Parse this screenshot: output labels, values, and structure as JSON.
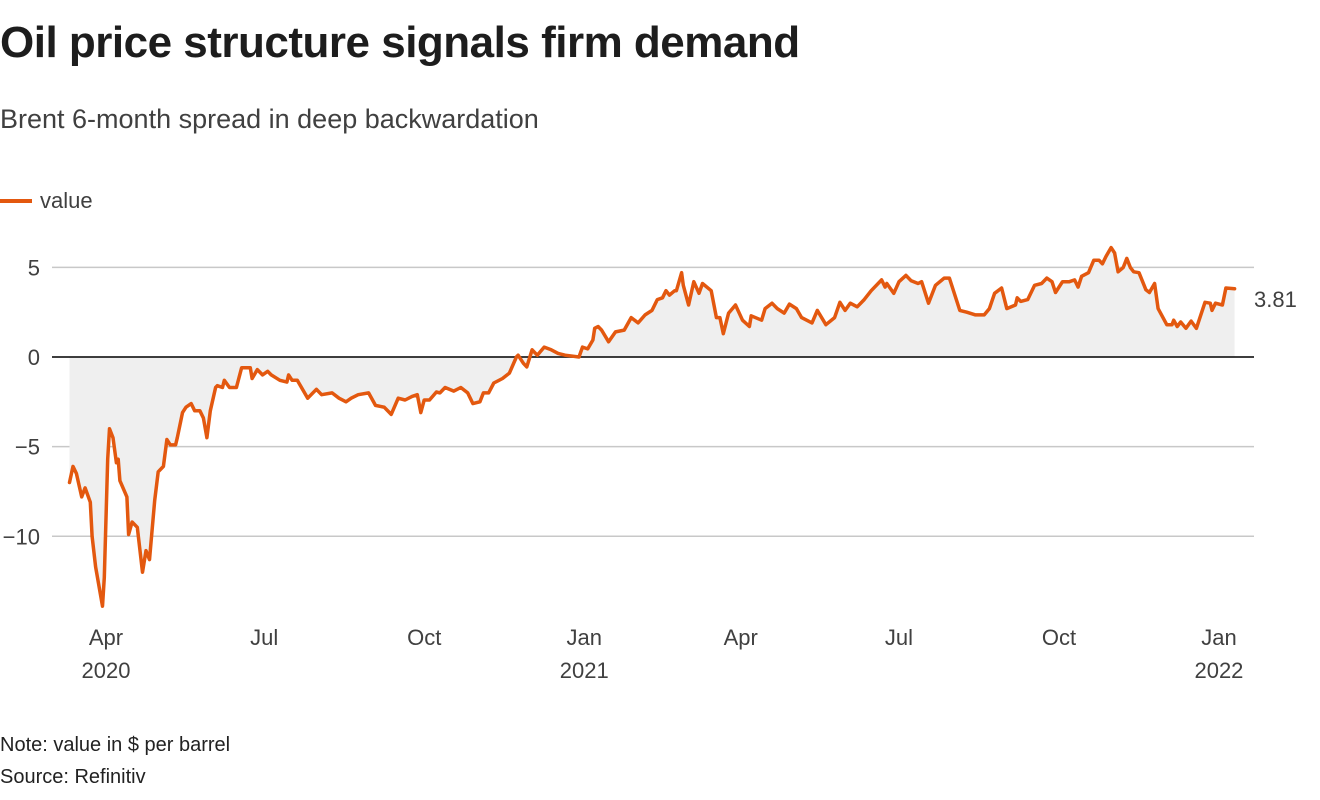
{
  "title": "Oil price structure signals firm demand",
  "subtitle": "Brent 6-month spread in deep backwardation",
  "note": "Note: value in $ per barrel",
  "source": "Source: Refinitiv",
  "chart_data": {
    "type": "area",
    "title": "Oil price structure signals firm demand",
    "subtitle": "Brent 6-month spread in deep backwardation",
    "xlabel": "",
    "ylabel": "",
    "legend": {
      "placement": "top-left",
      "entries": [
        "value"
      ]
    },
    "grid": true,
    "ylim": [
      -14.5,
      6.5
    ],
    "xlim": [
      "2020-03-11",
      "2022-01-10"
    ],
    "y_ticks": [
      {
        "value": 5,
        "label": "5"
      },
      {
        "value": 0,
        "label": "0"
      },
      {
        "value": -5,
        "label": "−5"
      },
      {
        "value": -10,
        "label": "−10"
      }
    ],
    "x_ticks": [
      {
        "date": "2020-04-01",
        "label": "Apr",
        "sublabel": "2020"
      },
      {
        "date": "2020-07-01",
        "label": "Jul",
        "sublabel": ""
      },
      {
        "date": "2020-10-01",
        "label": "Oct",
        "sublabel": ""
      },
      {
        "date": "2021-01-01",
        "label": "Jan",
        "sublabel": "2021"
      },
      {
        "date": "2021-04-01",
        "label": "Apr",
        "sublabel": ""
      },
      {
        "date": "2021-07-01",
        "label": "Jul",
        "sublabel": ""
      },
      {
        "date": "2021-10-01",
        "label": "Oct",
        "sublabel": ""
      },
      {
        "date": "2022-01-01",
        "label": "Jan",
        "sublabel": "2022"
      }
    ],
    "end_label": "3.81",
    "colors": {
      "line": "#e3580f",
      "area": "#efefef",
      "grid": "#c8c8c8",
      "zero": "#222222"
    },
    "series": [
      {
        "name": "value",
        "points": [
          [
            "2020-03-11",
            -7.0
          ],
          [
            "2020-03-13",
            -6.1
          ],
          [
            "2020-03-15",
            -6.5
          ],
          [
            "2020-03-18",
            -7.8
          ],
          [
            "2020-03-20",
            -7.3
          ],
          [
            "2020-03-23",
            -8.1
          ],
          [
            "2020-03-24",
            -10.0
          ],
          [
            "2020-03-26",
            -11.7
          ],
          [
            "2020-03-30",
            -13.9
          ],
          [
            "2020-03-31",
            -12.3
          ],
          [
            "2020-04-02",
            -5.7
          ],
          [
            "2020-04-03",
            -4.0
          ],
          [
            "2020-04-05",
            -4.5
          ],
          [
            "2020-04-07",
            -5.9
          ],
          [
            "2020-04-08",
            -5.7
          ],
          [
            "2020-04-09",
            -6.9
          ],
          [
            "2020-04-13",
            -7.8
          ],
          [
            "2020-04-14",
            -9.9
          ],
          [
            "2020-04-16",
            -9.2
          ],
          [
            "2020-04-19",
            -9.5
          ],
          [
            "2020-04-22",
            -12.0
          ],
          [
            "2020-04-24",
            -10.8
          ],
          [
            "2020-04-26",
            -11.3
          ],
          [
            "2020-04-29",
            -8.0
          ],
          [
            "2020-05-01",
            -6.4
          ],
          [
            "2020-05-04",
            -6.1
          ],
          [
            "2020-05-06",
            -4.6
          ],
          [
            "2020-05-08",
            -4.9
          ],
          [
            "2020-05-11",
            -4.9
          ],
          [
            "2020-05-12",
            -4.5
          ],
          [
            "2020-05-15",
            -3.1
          ],
          [
            "2020-05-17",
            -2.8
          ],
          [
            "2020-05-20",
            -2.6
          ],
          [
            "2020-05-22",
            -3.0
          ],
          [
            "2020-05-25",
            -3.0
          ],
          [
            "2020-05-27",
            -3.4
          ],
          [
            "2020-05-29",
            -4.5
          ],
          [
            "2020-05-31",
            -3.0
          ],
          [
            "2020-06-03",
            -1.7
          ],
          [
            "2020-06-04",
            -1.6
          ],
          [
            "2020-06-07",
            -1.7
          ],
          [
            "2020-06-08",
            -1.3
          ],
          [
            "2020-06-11",
            -1.7
          ],
          [
            "2020-06-15",
            -1.7
          ],
          [
            "2020-06-18",
            -0.6
          ],
          [
            "2020-06-21",
            -0.6
          ],
          [
            "2020-06-23",
            -0.6
          ],
          [
            "2020-06-24",
            -1.2
          ],
          [
            "2020-06-27",
            -0.7
          ],
          [
            "2020-06-30",
            -1.0
          ],
          [
            "2020-07-03",
            -0.8
          ],
          [
            "2020-07-05",
            -1.0
          ],
          [
            "2020-07-10",
            -1.3
          ],
          [
            "2020-07-14",
            -1.4
          ],
          [
            "2020-07-15",
            -1.0
          ],
          [
            "2020-07-17",
            -1.3
          ],
          [
            "2020-07-20",
            -1.3
          ],
          [
            "2020-07-23",
            -1.8
          ],
          [
            "2020-07-26",
            -2.3
          ],
          [
            "2020-07-31",
            -1.8
          ],
          [
            "2020-08-03",
            -2.1
          ],
          [
            "2020-08-09",
            -2.0
          ],
          [
            "2020-08-13",
            -2.3
          ],
          [
            "2020-08-17",
            -2.5
          ],
          [
            "2020-08-20",
            -2.3
          ],
          [
            "2020-08-24",
            -2.1
          ],
          [
            "2020-08-30",
            -2.0
          ],
          [
            "2020-09-03",
            -2.7
          ],
          [
            "2020-09-08",
            -2.8
          ],
          [
            "2020-09-12",
            -3.2
          ],
          [
            "2020-09-16",
            -2.3
          ],
          [
            "2020-09-20",
            -2.4
          ],
          [
            "2020-09-24",
            -2.2
          ],
          [
            "2020-09-27",
            -2.1
          ],
          [
            "2020-09-29",
            -3.1
          ],
          [
            "2020-10-01",
            -2.4
          ],
          [
            "2020-10-04",
            -2.4
          ],
          [
            "2020-10-08",
            -1.95
          ],
          [
            "2020-10-10",
            -2.0
          ],
          [
            "2020-10-13",
            -1.7
          ],
          [
            "2020-10-18",
            -1.9
          ],
          [
            "2020-10-22",
            -1.7
          ],
          [
            "2020-10-26",
            -2.0
          ],
          [
            "2020-10-29",
            -2.6
          ],
          [
            "2020-11-02",
            -2.5
          ],
          [
            "2020-11-04",
            -2.0
          ],
          [
            "2020-11-07",
            -2.0
          ],
          [
            "2020-11-10",
            -1.45
          ],
          [
            "2020-11-15",
            -1.2
          ],
          [
            "2020-11-19",
            -0.9
          ],
          [
            "2020-11-23",
            0.0
          ],
          [
            "2020-11-24",
            0.1
          ],
          [
            "2020-11-27",
            -0.35
          ],
          [
            "2020-11-29",
            -0.55
          ],
          [
            "2020-12-02",
            0.4
          ],
          [
            "2020-12-05",
            0.1
          ],
          [
            "2020-12-09",
            0.55
          ],
          [
            "2020-12-13",
            0.4
          ],
          [
            "2020-12-17",
            0.2
          ],
          [
            "2020-12-21",
            0.1
          ],
          [
            "2020-12-29",
            0.0
          ],
          [
            "2020-12-31",
            0.55
          ],
          [
            "2021-01-03",
            0.45
          ],
          [
            "2021-01-06",
            0.95
          ],
          [
            "2021-01-07",
            1.6
          ],
          [
            "2021-01-09",
            1.7
          ],
          [
            "2021-01-11",
            1.5
          ],
          [
            "2021-01-15",
            0.85
          ],
          [
            "2021-01-19",
            1.4
          ],
          [
            "2021-01-24",
            1.5
          ],
          [
            "2021-01-28",
            2.2
          ],
          [
            "2021-02-01",
            1.9
          ],
          [
            "2021-02-05",
            2.35
          ],
          [
            "2021-02-09",
            2.6
          ],
          [
            "2021-02-12",
            3.2
          ],
          [
            "2021-02-15",
            3.3
          ],
          [
            "2021-02-17",
            3.7
          ],
          [
            "2021-02-19",
            3.45
          ],
          [
            "2021-02-22",
            3.7
          ],
          [
            "2021-02-23",
            3.7
          ],
          [
            "2021-02-26",
            4.7
          ],
          [
            "2021-02-27",
            4.0
          ],
          [
            "2021-03-02",
            2.9
          ],
          [
            "2021-03-05",
            4.2
          ],
          [
            "2021-03-08",
            3.55
          ],
          [
            "2021-03-10",
            4.1
          ],
          [
            "2021-03-15",
            3.7
          ],
          [
            "2021-03-18",
            2.2
          ],
          [
            "2021-03-20",
            2.2
          ],
          [
            "2021-03-22",
            1.3
          ],
          [
            "2021-03-25",
            2.45
          ],
          [
            "2021-03-29",
            2.9
          ],
          [
            "2021-04-02",
            2.05
          ],
          [
            "2021-04-06",
            1.7
          ],
          [
            "2021-04-07",
            2.3
          ],
          [
            "2021-04-13",
            2.05
          ],
          [
            "2021-04-15",
            2.7
          ],
          [
            "2021-04-19",
            3.0
          ],
          [
            "2021-04-22",
            2.7
          ],
          [
            "2021-04-26",
            2.45
          ],
          [
            "2021-04-29",
            2.95
          ],
          [
            "2021-05-03",
            2.7
          ],
          [
            "2021-05-06",
            2.2
          ],
          [
            "2021-05-12",
            1.9
          ],
          [
            "2021-05-15",
            2.6
          ],
          [
            "2021-05-20",
            1.8
          ],
          [
            "2021-05-25",
            2.2
          ],
          [
            "2021-05-28",
            3.05
          ],
          [
            "2021-05-31",
            2.6
          ],
          [
            "2021-06-03",
            3.0
          ],
          [
            "2021-06-07",
            2.8
          ],
          [
            "2021-06-11",
            3.2
          ],
          [
            "2021-06-15",
            3.7
          ],
          [
            "2021-06-21",
            4.3
          ],
          [
            "2021-06-23",
            3.9
          ],
          [
            "2021-06-24",
            4.1
          ],
          [
            "2021-06-28",
            3.55
          ],
          [
            "2021-07-01",
            4.2
          ],
          [
            "2021-07-05",
            4.55
          ],
          [
            "2021-07-08",
            4.25
          ],
          [
            "2021-07-12",
            4.1
          ],
          [
            "2021-07-14",
            4.2
          ],
          [
            "2021-07-18",
            3.0
          ],
          [
            "2021-07-22",
            4.0
          ],
          [
            "2021-07-27",
            4.4
          ],
          [
            "2021-07-30",
            4.4
          ],
          [
            "2021-08-05",
            2.6
          ],
          [
            "2021-08-09",
            2.5
          ],
          [
            "2021-08-14",
            2.35
          ],
          [
            "2021-08-19",
            2.35
          ],
          [
            "2021-08-22",
            2.7
          ],
          [
            "2021-08-25",
            3.55
          ],
          [
            "2021-08-29",
            3.85
          ],
          [
            "2021-09-01",
            2.7
          ],
          [
            "2021-09-06",
            2.9
          ],
          [
            "2021-09-07",
            3.3
          ],
          [
            "2021-09-09",
            3.1
          ],
          [
            "2021-09-13",
            3.2
          ],
          [
            "2021-09-17",
            4.0
          ],
          [
            "2021-09-21",
            4.1
          ],
          [
            "2021-09-24",
            4.4
          ],
          [
            "2021-09-27",
            4.2
          ],
          [
            "2021-09-29",
            3.6
          ],
          [
            "2021-10-03",
            4.2
          ],
          [
            "2021-10-07",
            4.2
          ],
          [
            "2021-10-10",
            4.3
          ],
          [
            "2021-10-12",
            3.9
          ],
          [
            "2021-10-14",
            4.5
          ],
          [
            "2021-10-18",
            4.7
          ],
          [
            "2021-10-21",
            5.4
          ],
          [
            "2021-10-24",
            5.4
          ],
          [
            "2021-10-26",
            5.2
          ],
          [
            "2021-10-28",
            5.6
          ],
          [
            "2021-10-31",
            6.1
          ],
          [
            "2021-11-02",
            5.8
          ],
          [
            "2021-11-04",
            4.75
          ],
          [
            "2021-11-07",
            5.0
          ],
          [
            "2021-11-09",
            5.5
          ],
          [
            "2021-11-11",
            5.0
          ],
          [
            "2021-11-13",
            4.75
          ],
          [
            "2021-11-16",
            4.7
          ],
          [
            "2021-11-20",
            3.75
          ],
          [
            "2021-11-22",
            3.6
          ],
          [
            "2021-11-25",
            4.1
          ],
          [
            "2021-11-27",
            2.7
          ],
          [
            "2021-12-02",
            1.8
          ],
          [
            "2021-12-05",
            1.8
          ],
          [
            "2021-12-06",
            2.05
          ],
          [
            "2021-12-08",
            1.7
          ],
          [
            "2021-12-10",
            1.95
          ],
          [
            "2021-12-13",
            1.6
          ],
          [
            "2021-12-16",
            2.0
          ],
          [
            "2021-12-19",
            1.6
          ],
          [
            "2021-12-24",
            3.05
          ],
          [
            "2021-12-27",
            3.0
          ],
          [
            "2021-12-28",
            2.6
          ],
          [
            "2021-12-30",
            3.0
          ],
          [
            "2022-01-03",
            2.9
          ],
          [
            "2022-01-05",
            3.85
          ],
          [
            "2022-01-10",
            3.81
          ]
        ]
      }
    ]
  }
}
